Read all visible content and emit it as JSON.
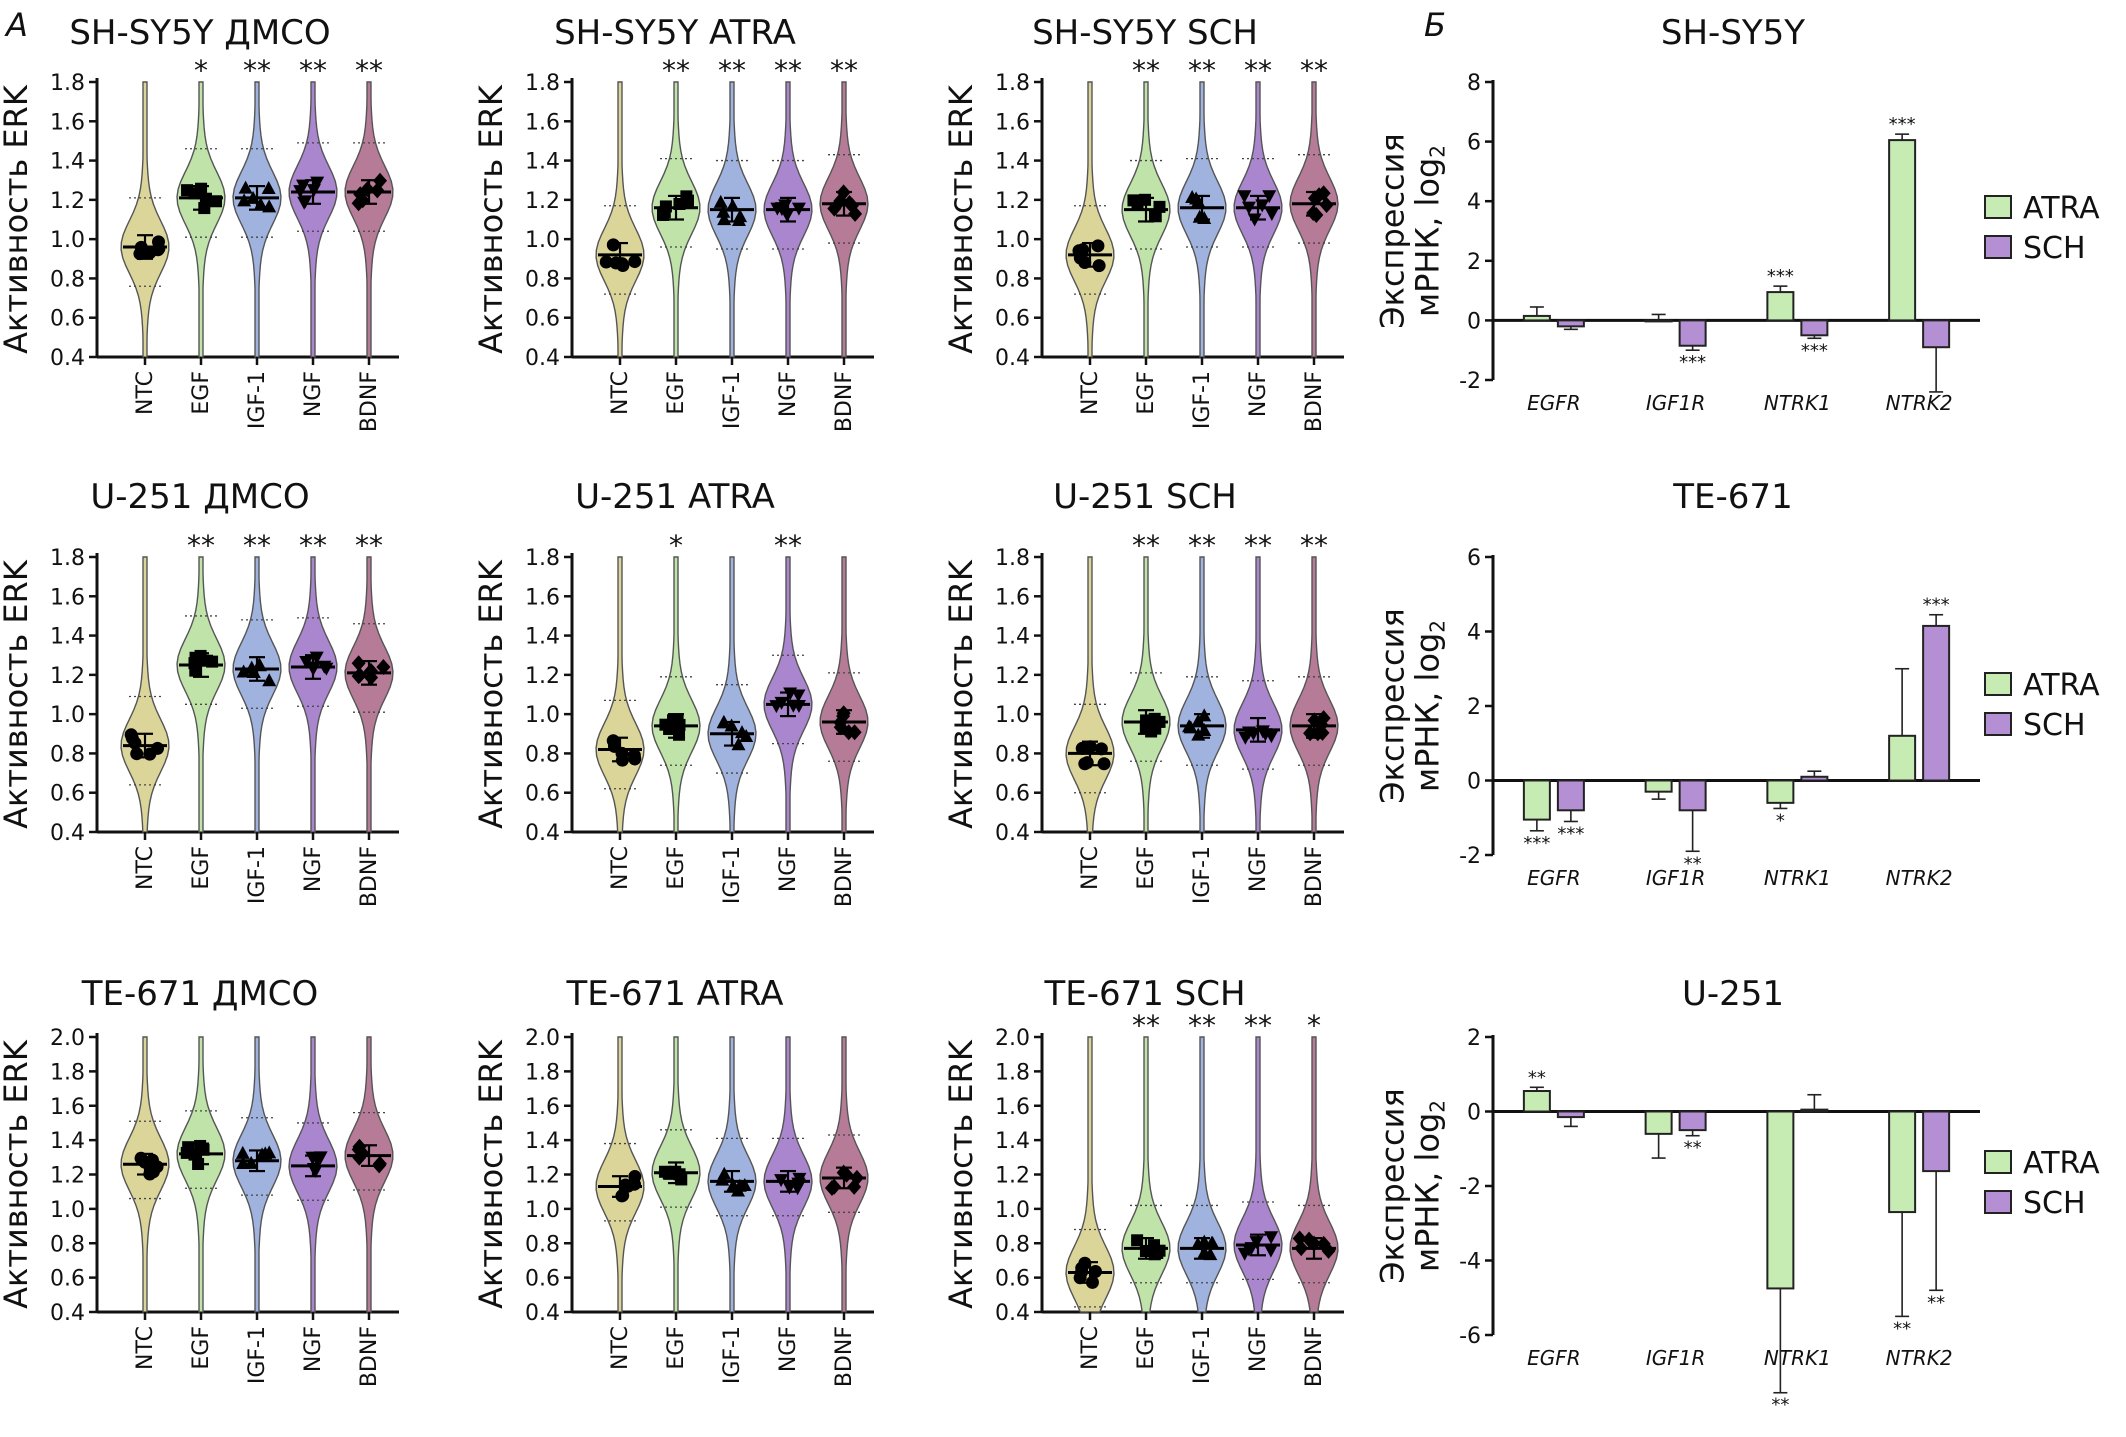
{
  "panel_labels": {
    "a": "А",
    "b": "Б"
  },
  "colors": {
    "NTC": "#dcd59a",
    "EGF": "#bfe3a9",
    "IGF-1": "#9fb3de",
    "NGF": "#a986cd",
    "BDNF": "#b57b97",
    "ATRA": "#c6ecb4",
    "SCH": "#b48fd4",
    "marker": "#000000"
  },
  "chart_data": [
    {
      "type": "violin",
      "title": "SH-SY5Y ДМСО",
      "ylabel": "Активность ERK",
      "ylim": [
        0.4,
        1.8
      ],
      "yticks": [
        "0.4",
        "0.6",
        "0.8",
        "1.0",
        "1.2",
        "1.4",
        "1.6",
        "1.8"
      ],
      "categories": [
        "NTC",
        "EGF",
        "IGF-1",
        "NGF",
        "BDNF"
      ],
      "means": [
        0.96,
        1.21,
        1.21,
        1.24,
        1.24
      ],
      "significance": [
        "",
        "*",
        "**",
        "**",
        "**"
      ]
    },
    {
      "type": "violin",
      "title": "SH-SY5Y ATRA",
      "ylabel": "Активность ERK",
      "ylim": [
        0.4,
        1.8
      ],
      "yticks": [
        "0.4",
        "0.6",
        "0.8",
        "1.0",
        "1.2",
        "1.4",
        "1.6",
        "1.8"
      ],
      "categories": [
        "NTC",
        "EGF",
        "IGF-1",
        "NGF",
        "BDNF"
      ],
      "means": [
        0.92,
        1.16,
        1.15,
        1.15,
        1.18
      ],
      "significance": [
        "",
        "**",
        "**",
        "**",
        "**"
      ]
    },
    {
      "type": "violin",
      "title": "SH-SY5Y SCH",
      "ylabel": "Активность ERK",
      "ylim": [
        0.4,
        1.8
      ],
      "yticks": [
        "0.4",
        "0.6",
        "0.8",
        "1.0",
        "1.2",
        "1.4",
        "1.6",
        "1.8"
      ],
      "categories": [
        "NTC",
        "EGF",
        "IGF-1",
        "NGF",
        "BDNF"
      ],
      "means": [
        0.92,
        1.15,
        1.16,
        1.16,
        1.18
      ],
      "significance": [
        "",
        "**",
        "**",
        "**",
        "**"
      ]
    },
    {
      "type": "violin",
      "title": "U-251 ДМСО",
      "ylabel": "Активность ERK",
      "ylim": [
        0.4,
        1.8
      ],
      "yticks": [
        "0.4",
        "0.6",
        "0.8",
        "1.0",
        "1.2",
        "1.4",
        "1.6",
        "1.8"
      ],
      "categories": [
        "NTC",
        "EGF",
        "IGF-1",
        "NGF",
        "BDNF"
      ],
      "means": [
        0.84,
        1.25,
        1.23,
        1.24,
        1.21
      ],
      "significance": [
        "",
        "**",
        "**",
        "**",
        "**"
      ]
    },
    {
      "type": "violin",
      "title": "U-251 ATRA",
      "ylabel": "Активность ERK",
      "ylim": [
        0.4,
        1.8
      ],
      "yticks": [
        "0.4",
        "0.6",
        "0.8",
        "1.0",
        "1.2",
        "1.4",
        "1.6",
        "1.8"
      ],
      "categories": [
        "NTC",
        "EGF",
        "IGF-1",
        "NGF",
        "BDNF"
      ],
      "means": [
        0.82,
        0.94,
        0.9,
        1.05,
        0.96
      ],
      "significance": [
        "",
        "*",
        "",
        "**",
        ""
      ]
    },
    {
      "type": "violin",
      "title": "U-251 SCH",
      "ylabel": "Активность ERK",
      "ylim": [
        0.4,
        1.8
      ],
      "yticks": [
        "0.4",
        "0.6",
        "0.8",
        "1.0",
        "1.2",
        "1.4",
        "1.6",
        "1.8"
      ],
      "categories": [
        "NTC",
        "EGF",
        "IGF-1",
        "NGF",
        "BDNF"
      ],
      "means": [
        0.8,
        0.96,
        0.94,
        0.92,
        0.94
      ],
      "significance": [
        "",
        "**",
        "**",
        "**",
        "**"
      ]
    },
    {
      "type": "violin",
      "title": "TE-671 ДМСО",
      "ylabel": "Активность ERK",
      "ylim": [
        0.4,
        2.0
      ],
      "yticks": [
        "0.4",
        "0.6",
        "0.8",
        "1.0",
        "1.2",
        "1.4",
        "1.6",
        "1.8",
        "2.0"
      ],
      "categories": [
        "NTC",
        "EGF",
        "IGF-1",
        "NGF",
        "BDNF"
      ],
      "means": [
        1.26,
        1.32,
        1.28,
        1.25,
        1.31
      ],
      "significance": [
        "",
        "",
        "",
        "",
        ""
      ]
    },
    {
      "type": "violin",
      "title": "TE-671 ATRA",
      "ylabel": "Активность ERK",
      "ylim": [
        0.4,
        2.0
      ],
      "yticks": [
        "0.4",
        "0.6",
        "0.8",
        "1.0",
        "1.2",
        "1.4",
        "1.6",
        "1.8",
        "2.0"
      ],
      "categories": [
        "NTC",
        "EGF",
        "IGF-1",
        "NGF",
        "BDNF"
      ],
      "means": [
        1.13,
        1.21,
        1.16,
        1.16,
        1.18
      ],
      "significance": [
        "",
        "",
        "",
        "",
        ""
      ]
    },
    {
      "type": "violin",
      "title": "TE-671 SCH",
      "ylabel": "Активность ERK",
      "ylim": [
        0.4,
        2.0
      ],
      "yticks": [
        "0.4",
        "0.6",
        "0.8",
        "1.0",
        "1.2",
        "1.4",
        "1.6",
        "1.8",
        "2.0"
      ],
      "categories": [
        "NTC",
        "EGF",
        "IGF-1",
        "NGF",
        "BDNF"
      ],
      "means": [
        0.63,
        0.77,
        0.77,
        0.79,
        0.77
      ],
      "significance": [
        "",
        "**",
        "**",
        "**",
        "*"
      ]
    },
    {
      "type": "bar",
      "title": "SH-SY5Y",
      "ylabel": "Экспрессия мРНК, log",
      "ylabel_sub": "2",
      "ylim": [
        -2,
        8
      ],
      "yticks": [
        "-2",
        "0",
        "2",
        "4",
        "6",
        "8"
      ],
      "categories": [
        "EGFR",
        "IGF1R",
        "NTRK1",
        "NTRK2"
      ],
      "legend": [
        "ATRA",
        "SCH"
      ],
      "legend_position": "right",
      "series": [
        {
          "name": "ATRA",
          "values": [
            0.15,
            0.0,
            0.95,
            6.05
          ],
          "err": [
            0.3,
            0.2,
            0.2,
            0.2
          ],
          "significance": [
            "",
            "",
            "***",
            "***"
          ]
        },
        {
          "name": "SCH",
          "values": [
            -0.2,
            -0.85,
            -0.5,
            -0.9
          ],
          "err": [
            0.1,
            0.15,
            0.1,
            1.5
          ],
          "significance": [
            "",
            "***",
            "***",
            ""
          ]
        }
      ]
    },
    {
      "type": "bar",
      "title": "TE-671",
      "ylabel": "Экспрессия мРНК, log",
      "ylabel_sub": "2",
      "ylim": [
        -2,
        6
      ],
      "yticks": [
        "-2",
        "0",
        "2",
        "4",
        "6"
      ],
      "categories": [
        "EGFR",
        "IGF1R",
        "NTRK1",
        "NTRK2"
      ],
      "legend": [
        "ATRA",
        "SCH"
      ],
      "legend_position": "right",
      "series": [
        {
          "name": "ATRA",
          "values": [
            -1.05,
            -0.3,
            -0.6,
            1.2
          ],
          "err": [
            0.3,
            0.2,
            0.15,
            1.8
          ],
          "significance": [
            "***",
            "",
            "*",
            ""
          ]
        },
        {
          "name": "SCH",
          "values": [
            -0.8,
            -0.8,
            0.1,
            4.15
          ],
          "err": [
            0.3,
            1.1,
            0.15,
            0.3
          ],
          "significance": [
            "***",
            "**",
            "",
            "***"
          ]
        }
      ]
    },
    {
      "type": "bar",
      "title": "U-251",
      "ylabel": "Экспрессия мРНК, log",
      "ylabel_sub": "2",
      "ylim": [
        -6,
        2
      ],
      "yticks": [
        "-6",
        "-4",
        "-2",
        "0",
        "2"
      ],
      "categories": [
        "EGFR",
        "IGF1R",
        "NTRK1",
        "NTRK2"
      ],
      "legend": [
        "ATRA",
        "SCH"
      ],
      "legend_position": "right",
      "series": [
        {
          "name": "ATRA",
          "values": [
            0.55,
            -0.6,
            -4.75,
            -2.7
          ],
          "err": [
            0.1,
            0.65,
            2.8,
            2.8
          ],
          "significance": [
            "**",
            "",
            "**",
            "**"
          ]
        },
        {
          "name": "SCH",
          "values": [
            -0.15,
            -0.5,
            0.05,
            -1.6
          ],
          "err": [
            0.25,
            0.15,
            0.4,
            3.2
          ],
          "significance": [
            "",
            "**",
            "",
            "**"
          ]
        }
      ]
    }
  ]
}
